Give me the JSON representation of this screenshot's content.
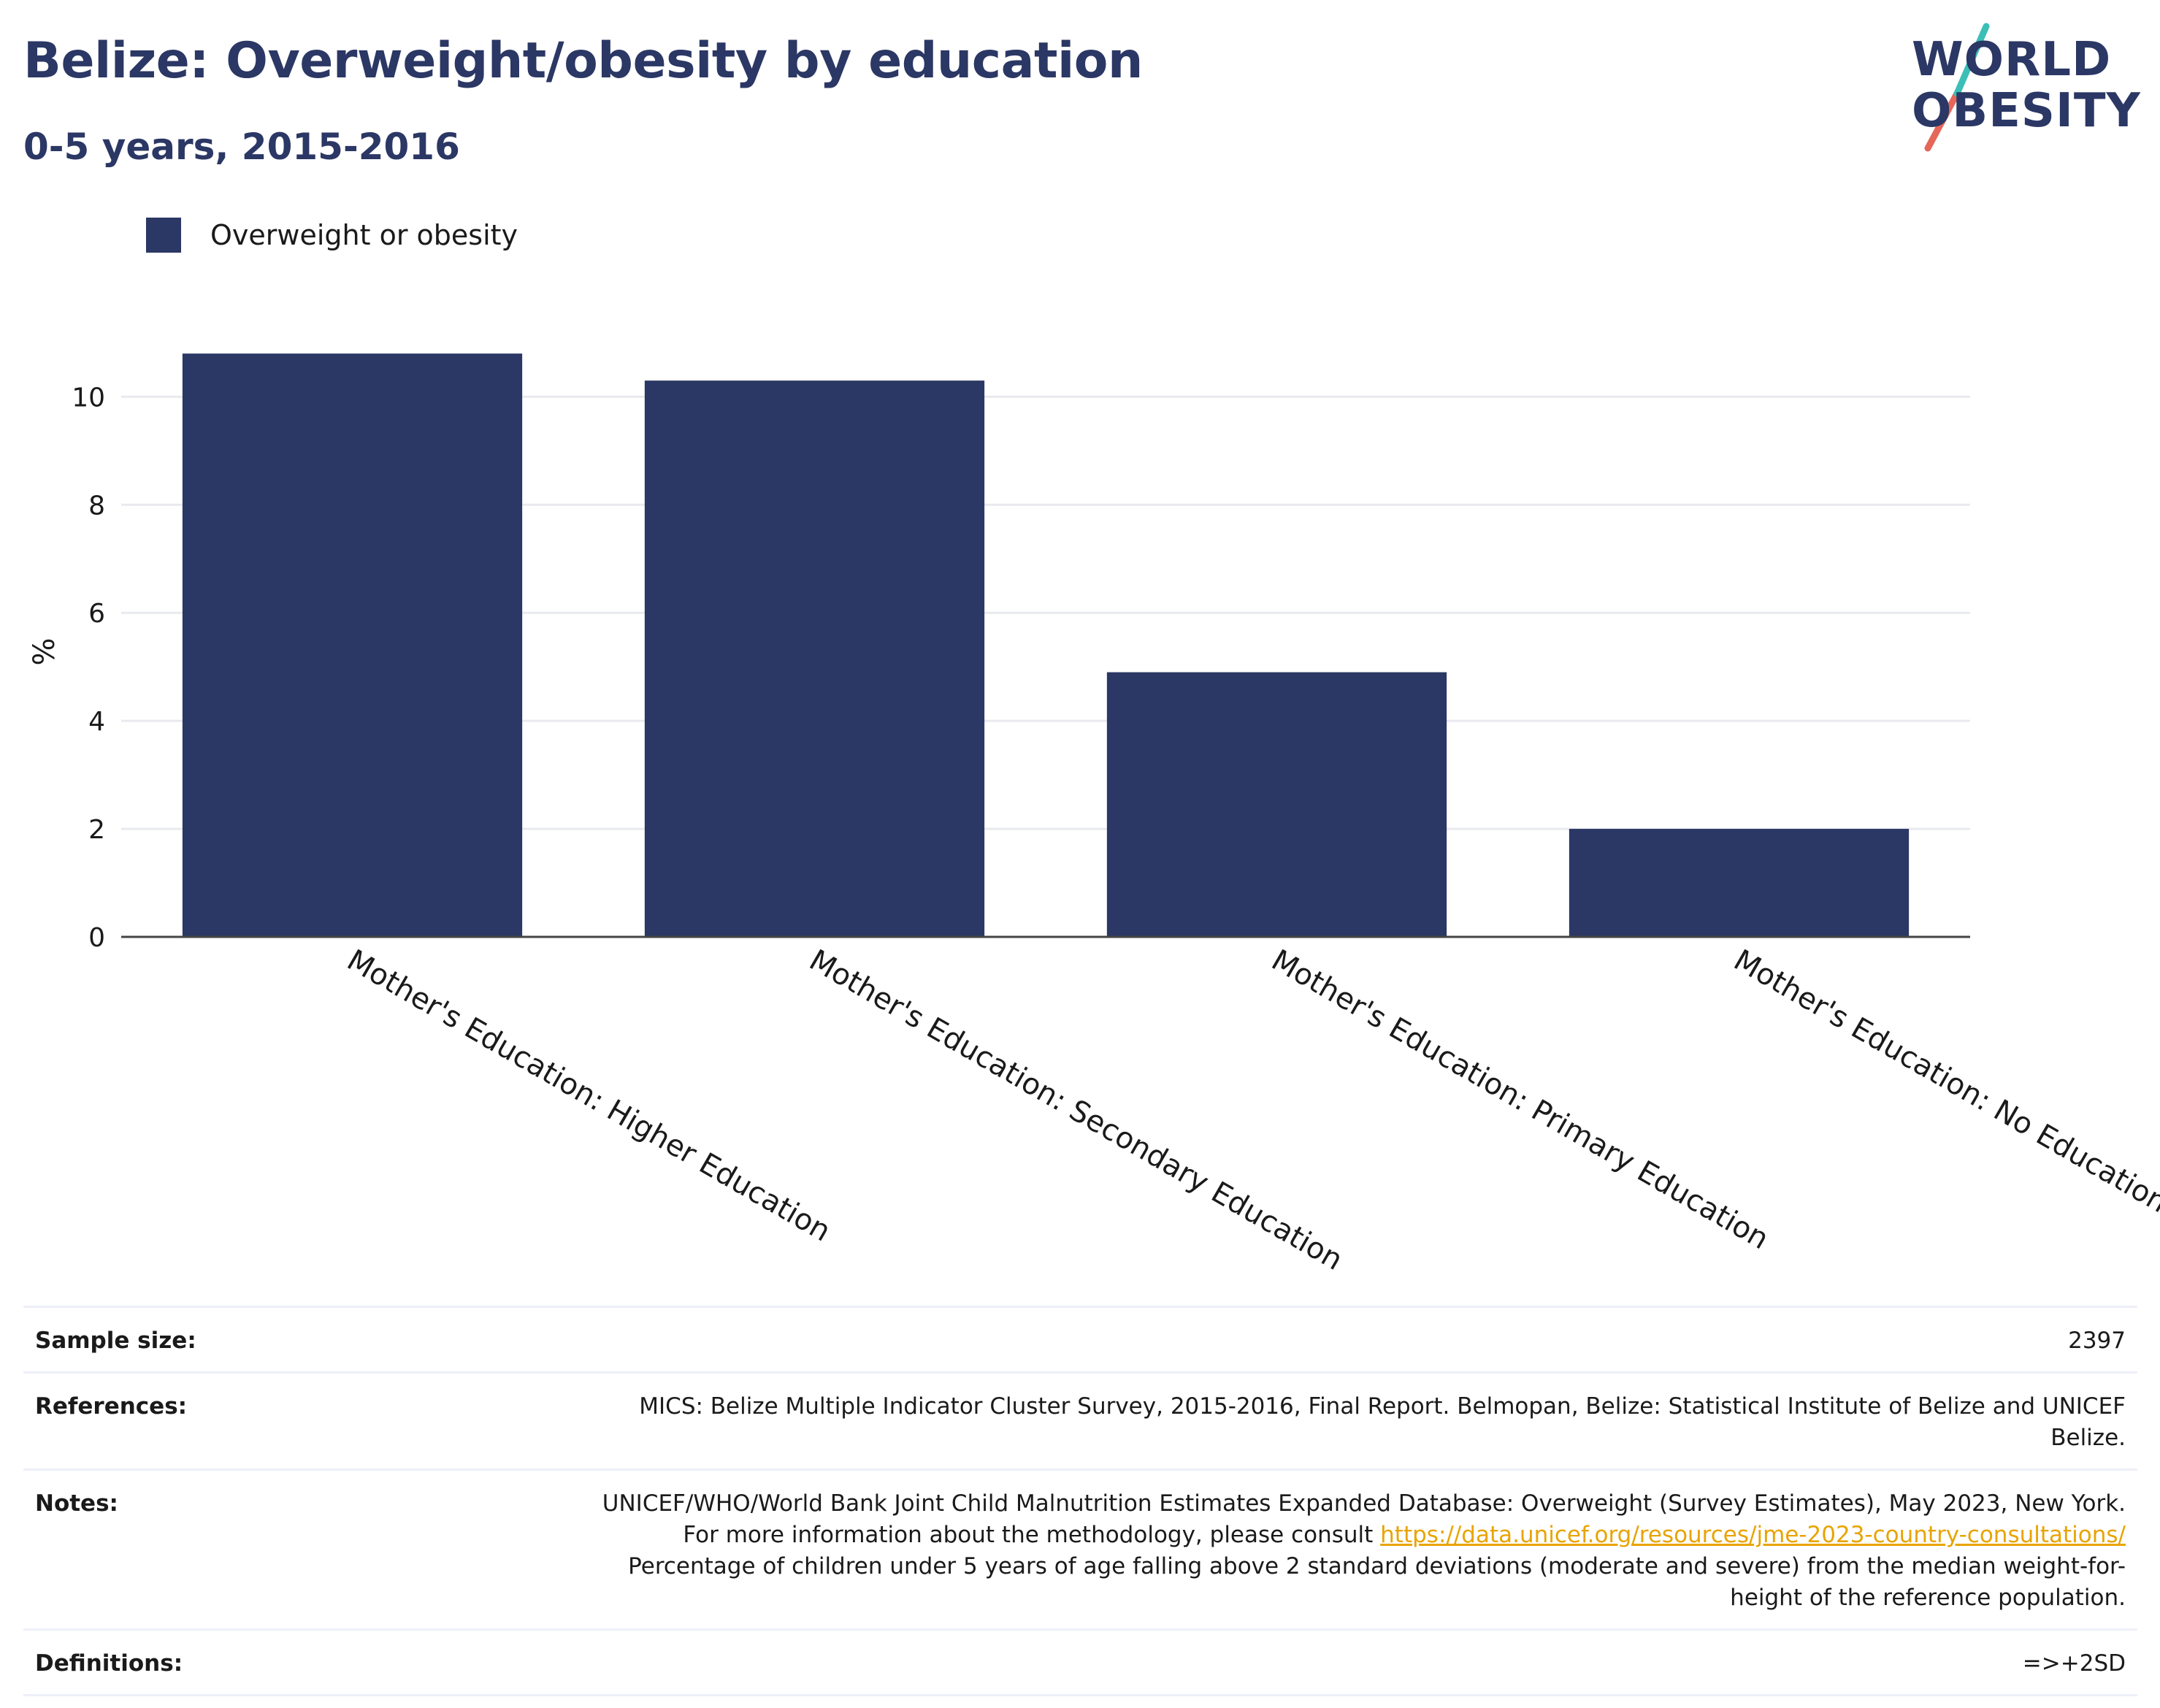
{
  "header": {
    "title": "Belize: Overweight/obesity by education",
    "subtitle": "0-5 years, 2015-2016"
  },
  "logo": {
    "line1": "WORLD",
    "line2": "OBESITY"
  },
  "legend": {
    "label": "Overweight or obesity",
    "color": "#2b3764"
  },
  "chart_data": {
    "type": "bar",
    "categories": [
      "Mother's Education: Higher Education",
      "Mother's Education: Secondary Education",
      "Mother's Education: Primary Education",
      "Mother's Education: No Education"
    ],
    "series": [
      {
        "name": "Overweight or obesity",
        "values": [
          10.8,
          10.3,
          4.9,
          2.0
        ],
        "color": "#2b3764"
      }
    ],
    "title": "Belize: Overweight/obesity by education",
    "subtitle": "0-5 years, 2015-2016",
    "xlabel": "",
    "ylabel": "%",
    "ylim": [
      0,
      11.1
    ],
    "yticks": [
      0,
      2,
      4,
      6,
      8,
      10
    ],
    "grid": true,
    "legend_position": "top-left"
  },
  "info_table": {
    "sample_size": {
      "label": "Sample size:",
      "value": "2397"
    },
    "references": {
      "label": "References:",
      "value": "MICS: Belize Multiple Indicator Cluster Survey, 2015-2016, Final Report. Belmopan, Belize: Statistical Institute of Belize and UNICEF Belize."
    },
    "notes": {
      "label": "Notes:",
      "text1": "UNICEF/WHO/World Bank Joint Child Malnutrition Estimates Expanded Database: Overweight (Survey Estimates), May 2023, New York. For more information about the methodology, please consult ",
      "link": "https://data.unicef.org/resources/jme-2023-country-consultations/",
      "text2": "Percentage of children under 5 years of age falling above 2 standard deviations (moderate and severe) from the median weight-for-height of the reference population."
    },
    "definitions": {
      "label": "Definitions:",
      "value": "=>+2SD"
    }
  }
}
